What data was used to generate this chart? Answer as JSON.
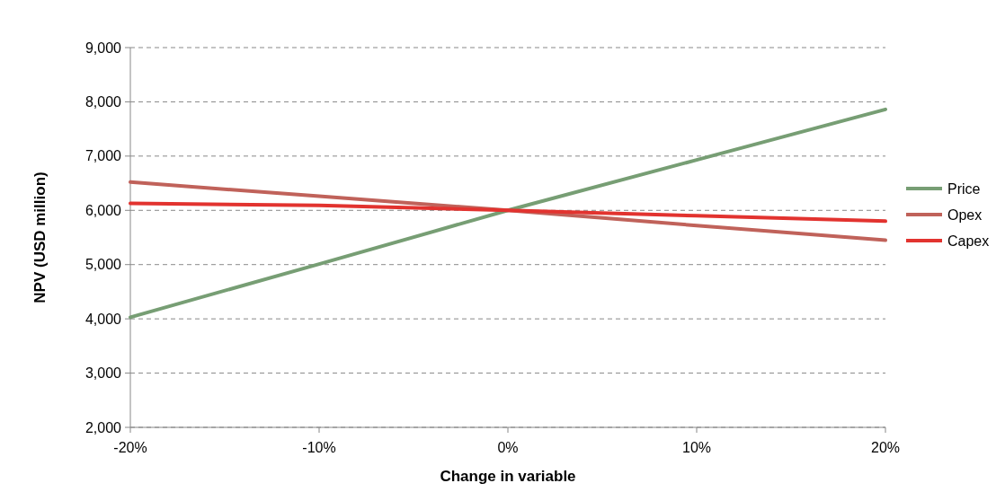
{
  "chart_data": {
    "type": "line",
    "xlabel": "Change in variable",
    "ylabel": "NPV (USD million)",
    "x": [
      -20,
      -10,
      0,
      10,
      20
    ],
    "series": [
      {
        "name": "Price",
        "color": "#779e74",
        "values": [
          4030,
          5010,
          6000,
          6930,
          7860
        ]
      },
      {
        "name": "Opex",
        "color": "#c0625a",
        "values": [
          6520,
          6260,
          6000,
          5720,
          5450
        ]
      },
      {
        "name": "Capex",
        "color": "#e2332f",
        "values": [
          6130,
          6090,
          6000,
          5900,
          5800
        ]
      }
    ],
    "xlim": [
      -20,
      20
    ],
    "xticks": [
      {
        "value": -20,
        "label": "-20%"
      },
      {
        "value": -10,
        "label": "-10%"
      },
      {
        "value": 0,
        "label": "0%"
      },
      {
        "value": 10,
        "label": "10%"
      },
      {
        "value": 20,
        "label": "20%"
      }
    ],
    "ylim": [
      2000,
      9000
    ],
    "yticks": [
      {
        "value": 2000,
        "label": "2,000"
      },
      {
        "value": 3000,
        "label": "3,000"
      },
      {
        "value": 4000,
        "label": "4,000"
      },
      {
        "value": 5000,
        "label": "5,000"
      },
      {
        "value": 6000,
        "label": "6,000"
      },
      {
        "value": 7000,
        "label": "7,000"
      },
      {
        "value": 8000,
        "label": "8,000"
      },
      {
        "value": 9000,
        "label": "9,000"
      }
    ],
    "grid": "y",
    "legend": "right",
    "marker": "none",
    "line_style": "solid"
  }
}
